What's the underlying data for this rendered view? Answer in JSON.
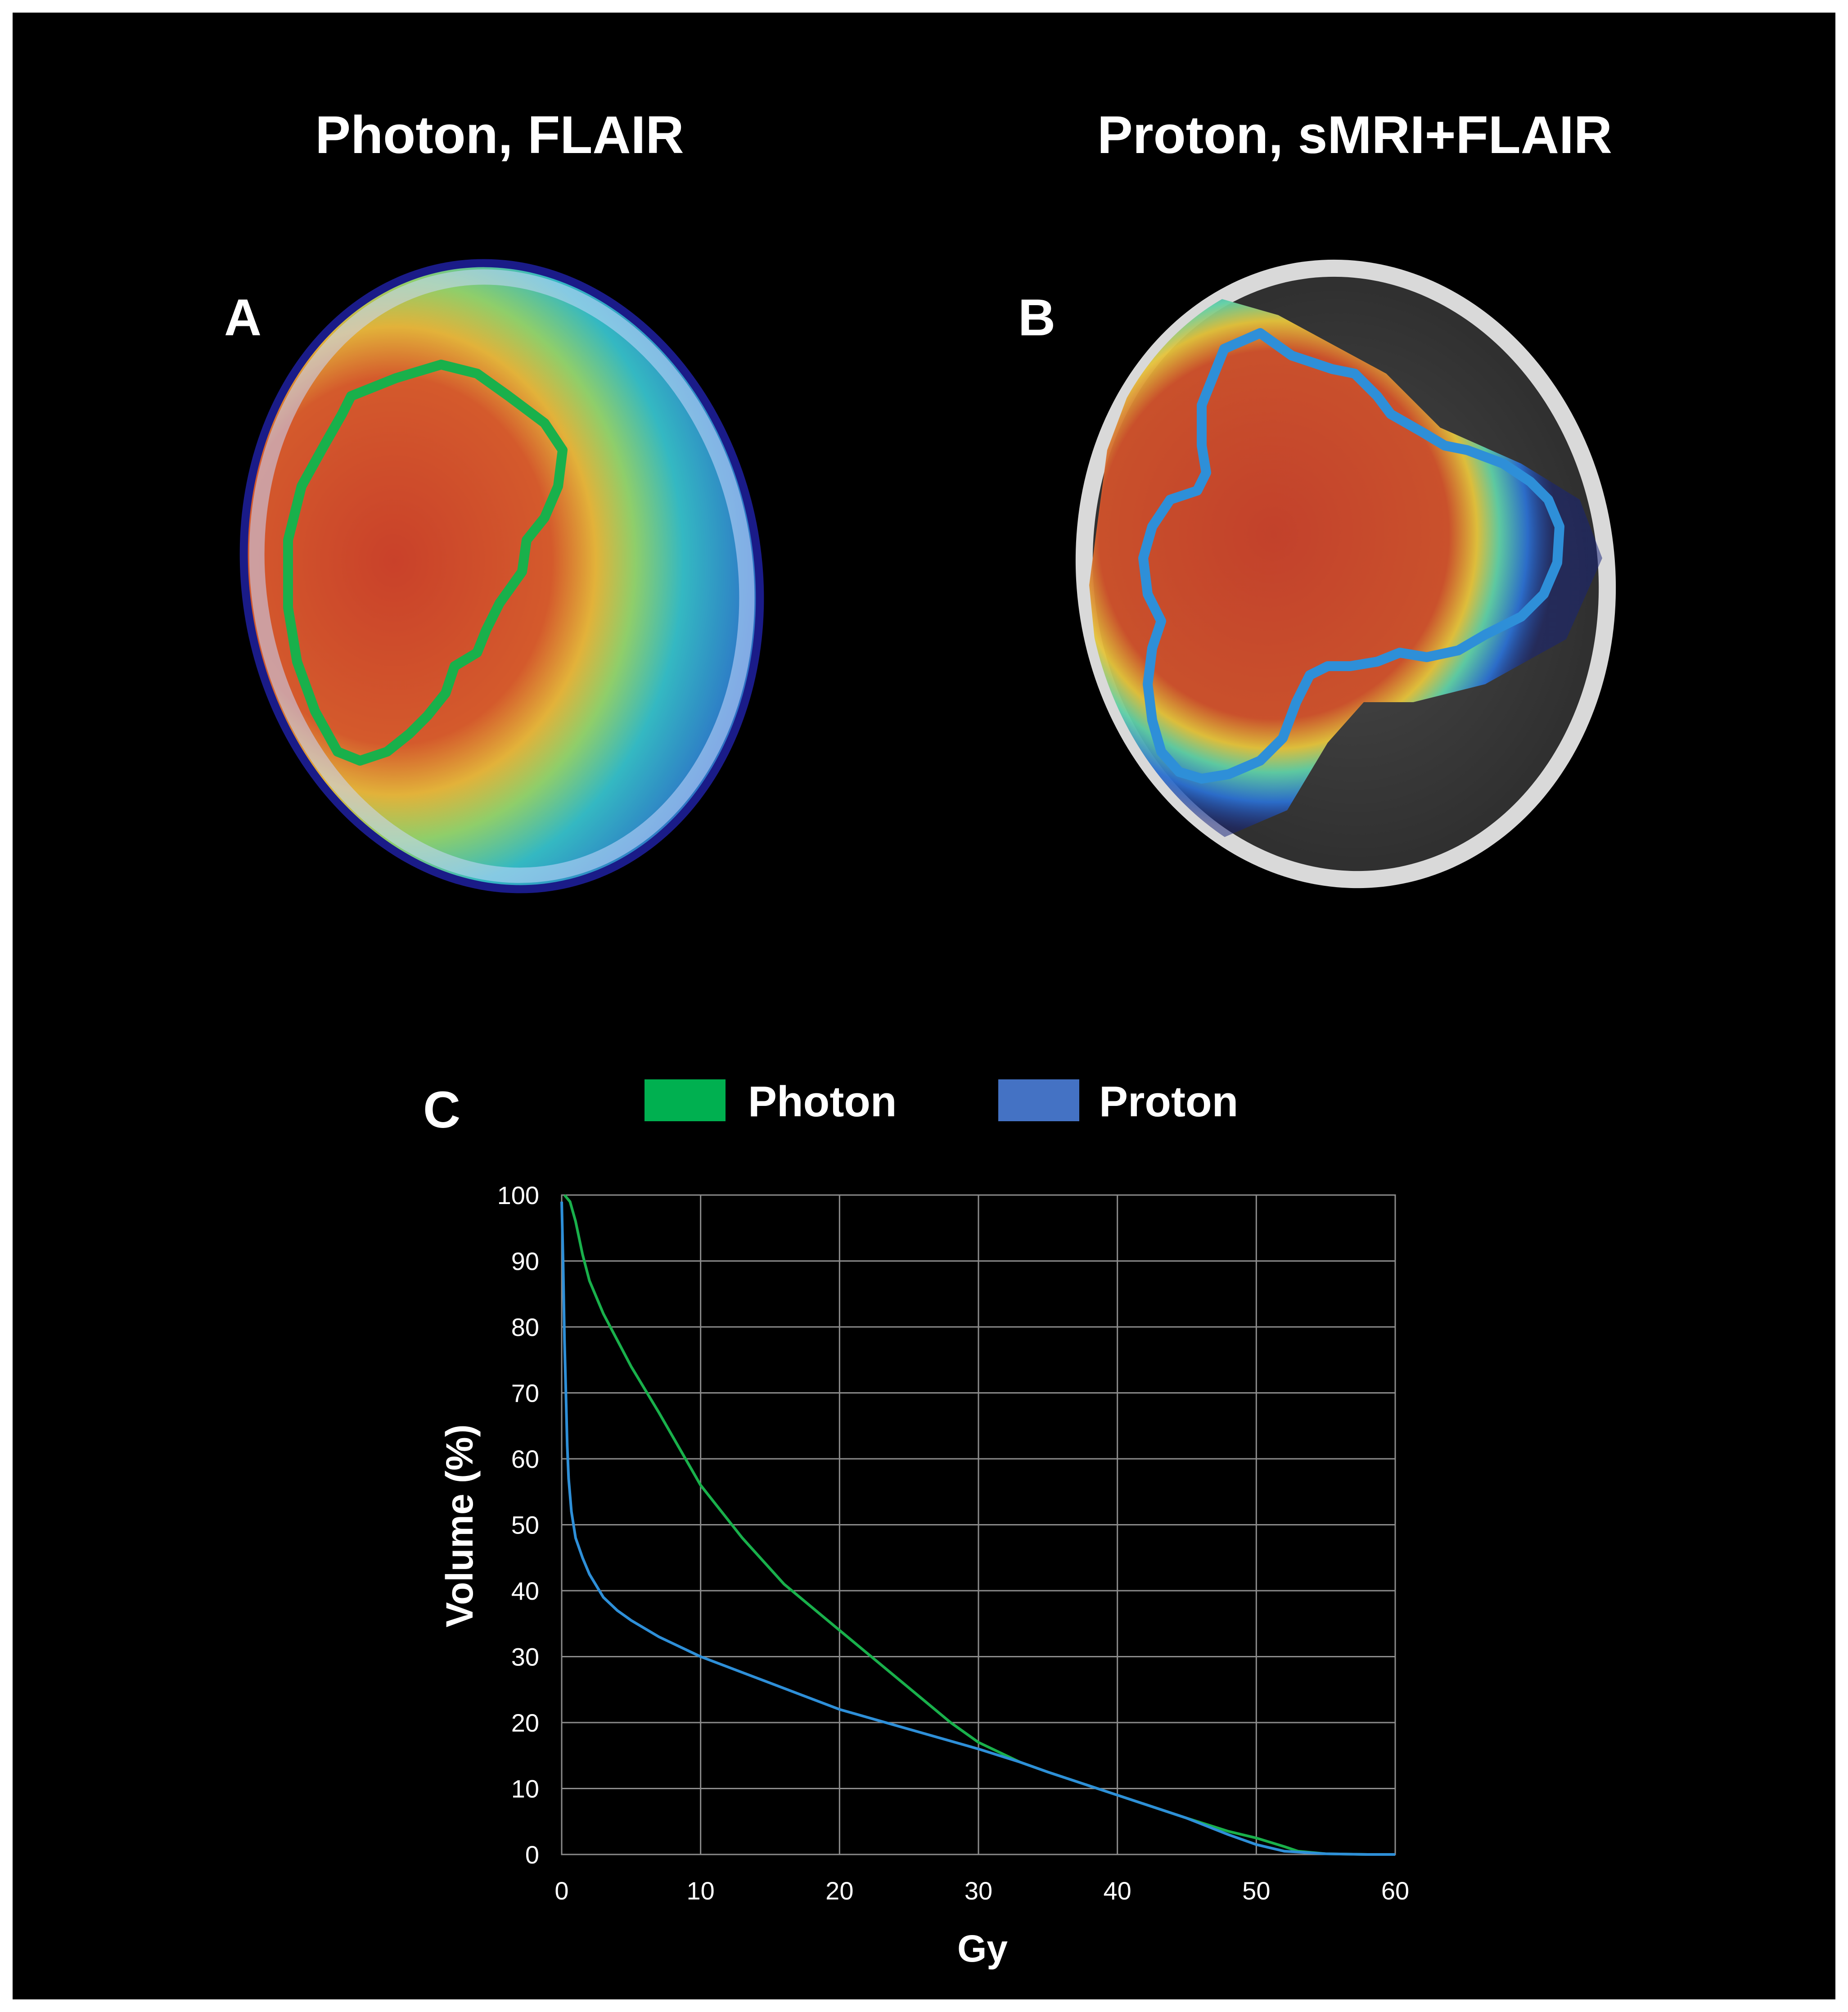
{
  "panels": {
    "a": {
      "title": "Photon, FLAIR",
      "label": "A"
    },
    "b": {
      "title": "Proton, sMRI+FLAIR",
      "label": "B"
    },
    "c": {
      "label": "C"
    }
  },
  "colors": {
    "photon": "#19b04b",
    "proton": "#2e8fd8",
    "legend_photon": "#00b050",
    "legend_proton": "#4472c4",
    "background": "#000000",
    "grid": "#8c8c8c"
  },
  "chart_data": {
    "type": "line",
    "title": "",
    "xlabel": "Gy",
    "ylabel": "Volume (%)",
    "xlim": [
      0,
      60
    ],
    "ylim": [
      0,
      100
    ],
    "xticks": [
      "0",
      "10",
      "20",
      "30",
      "40",
      "50",
      "60"
    ],
    "yticks": [
      "0",
      "10",
      "20",
      "30",
      "40",
      "50",
      "60",
      "70",
      "80",
      "90",
      "100"
    ],
    "grid": true,
    "legend": "top",
    "series": [
      {
        "name": "Photon",
        "color": "#19b04b",
        "points": [
          [
            0.2,
            100
          ],
          [
            0.6,
            99
          ],
          [
            1,
            96
          ],
          [
            1.5,
            91
          ],
          [
            2,
            87
          ],
          [
            3,
            82
          ],
          [
            4,
            78
          ],
          [
            5,
            74
          ],
          [
            7,
            67
          ],
          [
            10,
            56
          ],
          [
            13,
            48
          ],
          [
            16,
            41
          ],
          [
            20,
            34
          ],
          [
            24,
            27
          ],
          [
            28,
            20
          ],
          [
            30,
            17
          ],
          [
            33,
            14
          ],
          [
            35,
            12.5
          ],
          [
            40,
            9
          ],
          [
            45,
            5.5
          ],
          [
            48,
            3.5
          ],
          [
            50,
            2.5
          ],
          [
            52,
            1.2
          ],
          [
            53,
            0.5
          ],
          [
            55,
            0.1
          ],
          [
            58,
            0
          ],
          [
            60,
            0
          ]
        ]
      },
      {
        "name": "Proton",
        "color": "#2e8fd8",
        "points": [
          [
            0,
            99
          ],
          [
            0.1,
            90
          ],
          [
            0.2,
            78
          ],
          [
            0.3,
            70
          ],
          [
            0.4,
            62
          ],
          [
            0.5,
            57
          ],
          [
            0.7,
            52
          ],
          [
            1,
            48
          ],
          [
            1.5,
            45
          ],
          [
            2,
            42.5
          ],
          [
            3,
            39
          ],
          [
            4,
            37
          ],
          [
            5,
            35.5
          ],
          [
            7,
            33
          ],
          [
            10,
            30
          ],
          [
            15,
            26
          ],
          [
            20,
            22
          ],
          [
            25,
            19
          ],
          [
            30,
            16
          ],
          [
            33,
            14
          ],
          [
            35,
            12.5
          ],
          [
            40,
            9
          ],
          [
            45,
            5.5
          ],
          [
            48,
            3
          ],
          [
            50,
            1.5
          ],
          [
            52,
            0.5
          ],
          [
            55,
            0.1
          ],
          [
            58,
            0
          ],
          [
            60,
            0
          ]
        ]
      }
    ]
  }
}
